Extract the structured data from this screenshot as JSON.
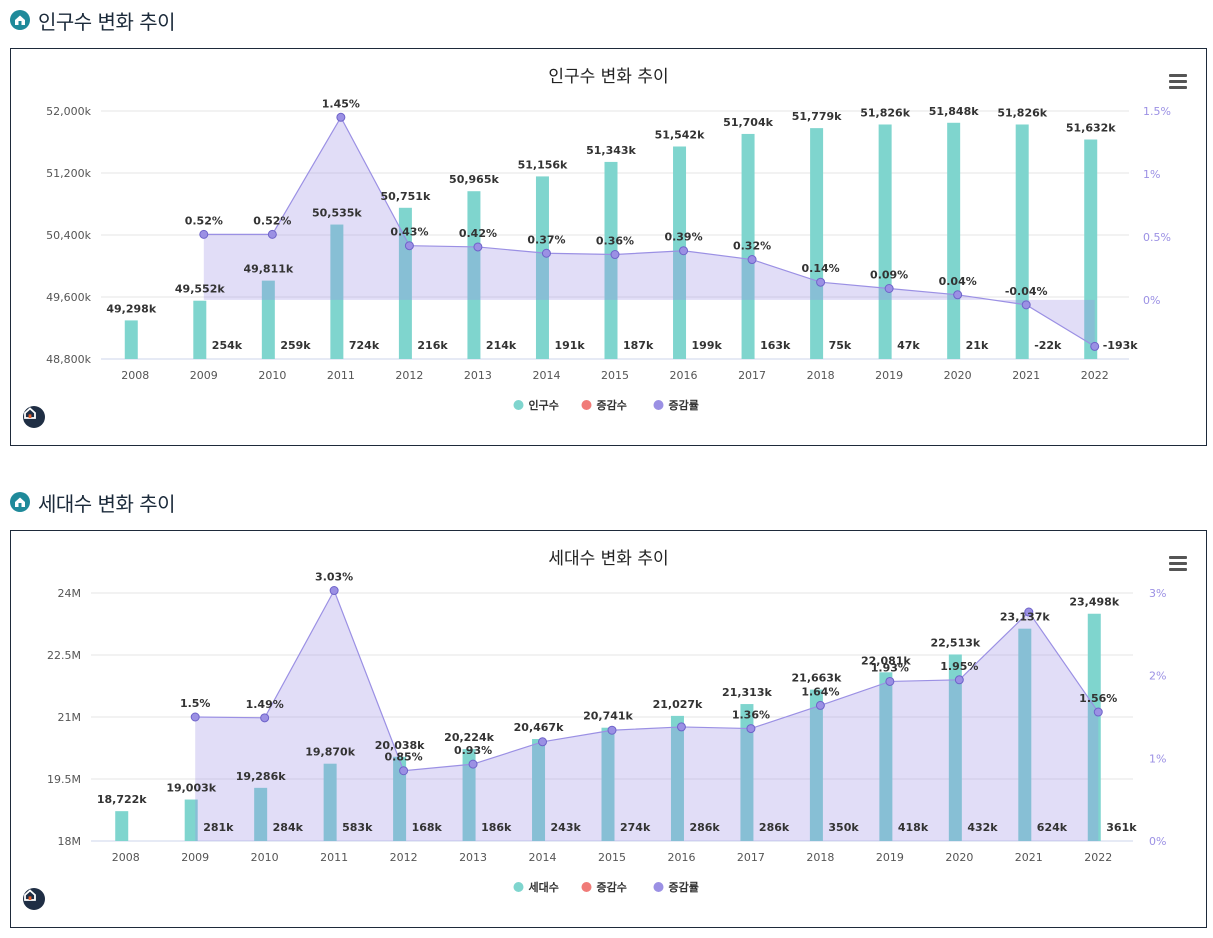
{
  "sections": [
    {
      "heading": "인구수 변화 추이",
      "chart_data": {
        "type": "bar",
        "title": "인구수 변화 추이",
        "categories": [
          "2008",
          "2009",
          "2010",
          "2011",
          "2012",
          "2013",
          "2014",
          "2015",
          "2016",
          "2017",
          "2018",
          "2019",
          "2020",
          "2021",
          "2022"
        ],
        "left_axis": {
          "min": 48800,
          "max": 52000,
          "ticks": [
            48800,
            49600,
            50400,
            51200,
            52000
          ],
          "tick_labels": [
            "48,800k",
            "49,600k",
            "50,400k",
            "51,200k",
            "52,000k"
          ]
        },
        "right_axis": {
          "min": -0.47,
          "max": 1.5,
          "ticks": [
            0,
            0.5,
            1,
            1.5
          ],
          "tick_labels": [
            "0%",
            "0.5%",
            "1%",
            "1.5%"
          ]
        },
        "series": [
          {
            "name": "인구수",
            "color": "#7fd5ce",
            "values": [
              49298,
              49552,
              49811,
              50535,
              50751,
              50965,
              51156,
              51343,
              51542,
              51704,
              51779,
              51826,
              51848,
              51826,
              51632
            ],
            "labels": [
              "49,298k",
              "49,552k",
              "49,811k",
              "50,535k",
              "50,751k",
              "50,965k",
              "51,156k",
              "51,343k",
              "51,542k",
              "51,704k",
              "51,779k",
              "51,826k",
              "51,848k",
              "51,826k",
              "51,632k"
            ]
          },
          {
            "name": "증감수",
            "color": "#f07b78",
            "values": [
              null,
              254,
              259,
              724,
              216,
              214,
              191,
              187,
              199,
              163,
              75,
              47,
              21,
              -22,
              -193
            ],
            "labels": [
              "",
              "254k",
              "259k",
              "724k",
              "216k",
              "214k",
              "191k",
              "187k",
              "199k",
              "163k",
              "75k",
              "47k",
              "21k",
              "-22k",
              "-193k"
            ]
          },
          {
            "name": "증감률",
            "color": "#9b90e4",
            "values": [
              null,
              0.52,
              0.52,
              1.45,
              0.43,
              0.42,
              0.37,
              0.36,
              0.39,
              0.32,
              0.14,
              0.09,
              0.04,
              -0.04,
              -0.37
            ],
            "labels": [
              "",
              "0.52%",
              "0.52%",
              "1.45%",
              "0.43%",
              "0.42%",
              "0.37%",
              "0.36%",
              "0.39%",
              "0.32%",
              "0.14%",
              "0.09%",
              "0.04%",
              "-0.04%",
              ""
            ]
          }
        ]
      }
    },
    {
      "heading": "세대수 변화 추이",
      "chart_data": {
        "type": "bar",
        "title": "세대수 변화 추이",
        "categories": [
          "2008",
          "2009",
          "2010",
          "2011",
          "2012",
          "2013",
          "2014",
          "2015",
          "2016",
          "2017",
          "2018",
          "2019",
          "2020",
          "2021",
          "2022"
        ],
        "left_axis": {
          "min": 18000,
          "max": 24000,
          "ticks": [
            18000,
            19500,
            21000,
            22500,
            24000
          ],
          "tick_labels": [
            "18M",
            "19.5M",
            "21M",
            "22.5M",
            "24M"
          ]
        },
        "right_axis": {
          "min": 0,
          "max": 3,
          "ticks": [
            0,
            1,
            2,
            3
          ],
          "tick_labels": [
            "0%",
            "1%",
            "2%",
            "3%"
          ]
        },
        "series": [
          {
            "name": "세대수",
            "color": "#7fd5ce",
            "values": [
              18722,
              19003,
              19286,
              19870,
              20038,
              20224,
              20467,
              20741,
              21027,
              21313,
              21663,
              22081,
              22513,
              23137,
              23498
            ],
            "labels": [
              "18,722k",
              "19,003k",
              "19,286k",
              "19,870k",
              "20,038k",
              "20,224k",
              "20,467k",
              "20,741k",
              "21,027k",
              "21,313k",
              "21,663k",
              "22,081k",
              "22,513k",
              "23,137k",
              "23,498k"
            ]
          },
          {
            "name": "증감수",
            "color": "#f07b78",
            "values": [
              null,
              281,
              284,
              583,
              168,
              186,
              243,
              274,
              286,
              286,
              350,
              418,
              432,
              624,
              361
            ],
            "labels": [
              "",
              "281k",
              "284k",
              "583k",
              "168k",
              "186k",
              "243k",
              "274k",
              "286k",
              "286k",
              "350k",
              "418k",
              "432k",
              "624k",
              "361k"
            ]
          },
          {
            "name": "증감률",
            "color": "#9b90e4",
            "values": [
              null,
              1.5,
              1.49,
              3.03,
              0.85,
              0.93,
              1.2,
              1.34,
              1.38,
              1.36,
              1.64,
              1.93,
              1.95,
              2.77,
              1.56
            ],
            "labels": [
              "",
              "1.5%",
              "1.49%",
              "3.03%",
              "0.85%",
              "0.93%",
              "",
              "",
              "",
              "1.36%",
              "1.64%",
              "1.93%",
              "1.95%",
              "",
              "1.56%"
            ]
          }
        ]
      }
    }
  ]
}
